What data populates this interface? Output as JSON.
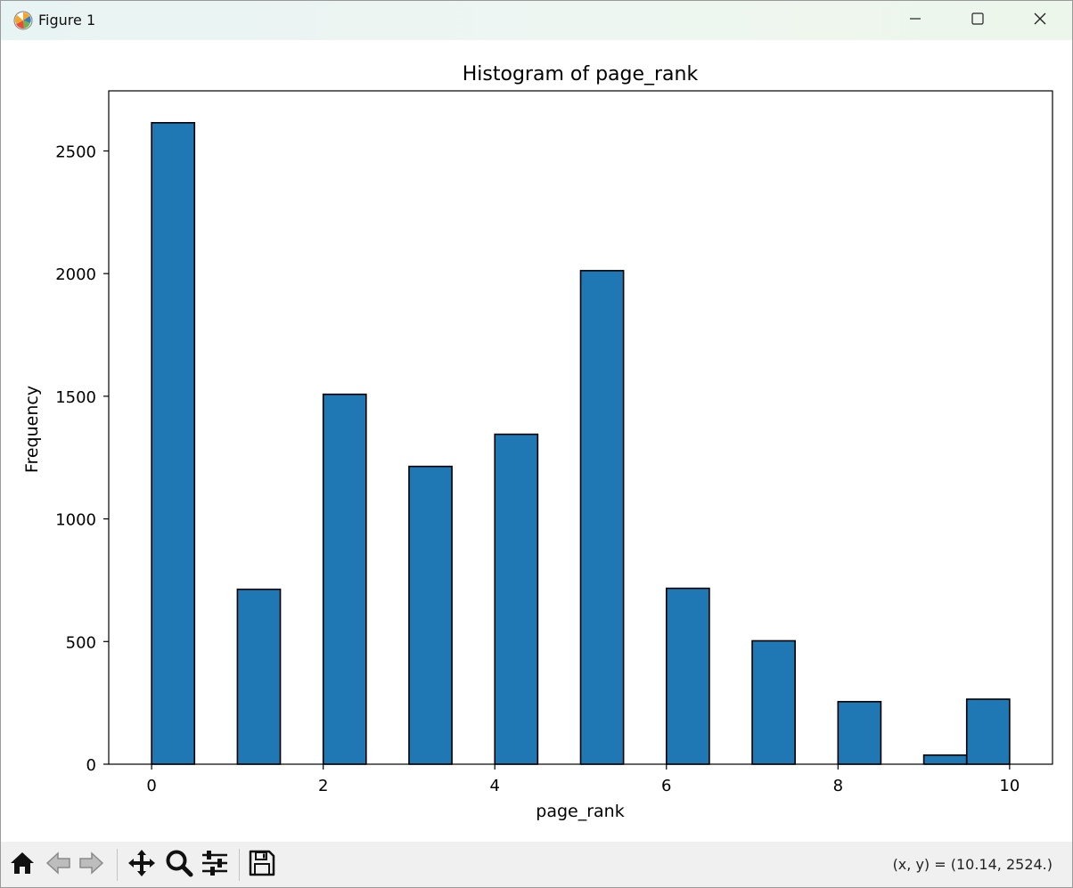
{
  "window": {
    "title": "Figure 1",
    "app_icon": "matplotlib-icon",
    "controls": {
      "minimize_icon": "minimize-icon",
      "maximize_icon": "maximize-icon",
      "close_icon": "close-icon"
    }
  },
  "toolbar": {
    "buttons": [
      {
        "name": "home-button",
        "icon": "home-icon"
      },
      {
        "name": "back-button",
        "icon": "arrow-left-icon"
      },
      {
        "name": "forward-button",
        "icon": "arrow-right-icon"
      },
      {
        "name": "pan-button",
        "icon": "move-icon"
      },
      {
        "name": "zoom-button",
        "icon": "magnifier-icon"
      },
      {
        "name": "configure-subplots-button",
        "icon": "sliders-icon"
      },
      {
        "name": "save-button",
        "icon": "floppy-disk-icon"
      }
    ],
    "coordinates": "(x, y) = (10.14, 2524.)"
  },
  "chart_data": {
    "type": "bar",
    "title": "Histogram of page_rank",
    "xlabel": "page_rank",
    "ylabel": "Frequency",
    "bin_edges": [
      0,
      0.5,
      1,
      1.5,
      2,
      2.5,
      3,
      3.5,
      4,
      4.5,
      5,
      5.5,
      6,
      6.5,
      7,
      7.5,
      8,
      8.5,
      9,
      9.5,
      10
    ],
    "values": [
      2615,
      0,
      713,
      0,
      1508,
      0,
      1214,
      0,
      1345,
      0,
      2012,
      0,
      717,
      0,
      503,
      0,
      255,
      0,
      37,
      265
    ],
    "xlim": [
      -0.5,
      10.5
    ],
    "ylim": [
      0,
      2745
    ],
    "xticks": [
      0,
      2,
      4,
      6,
      8,
      10
    ],
    "xtick_labels": [
      "0",
      "2",
      "4",
      "6",
      "8",
      "10"
    ],
    "yticks": [
      0,
      500,
      1000,
      1500,
      2000,
      2500
    ],
    "ytick_labels": [
      "0",
      "500",
      "1000",
      "1500",
      "2000",
      "2500"
    ],
    "bar_color": "#1f77b4",
    "edge_color": "#000000",
    "grid": false,
    "legend": false
  }
}
